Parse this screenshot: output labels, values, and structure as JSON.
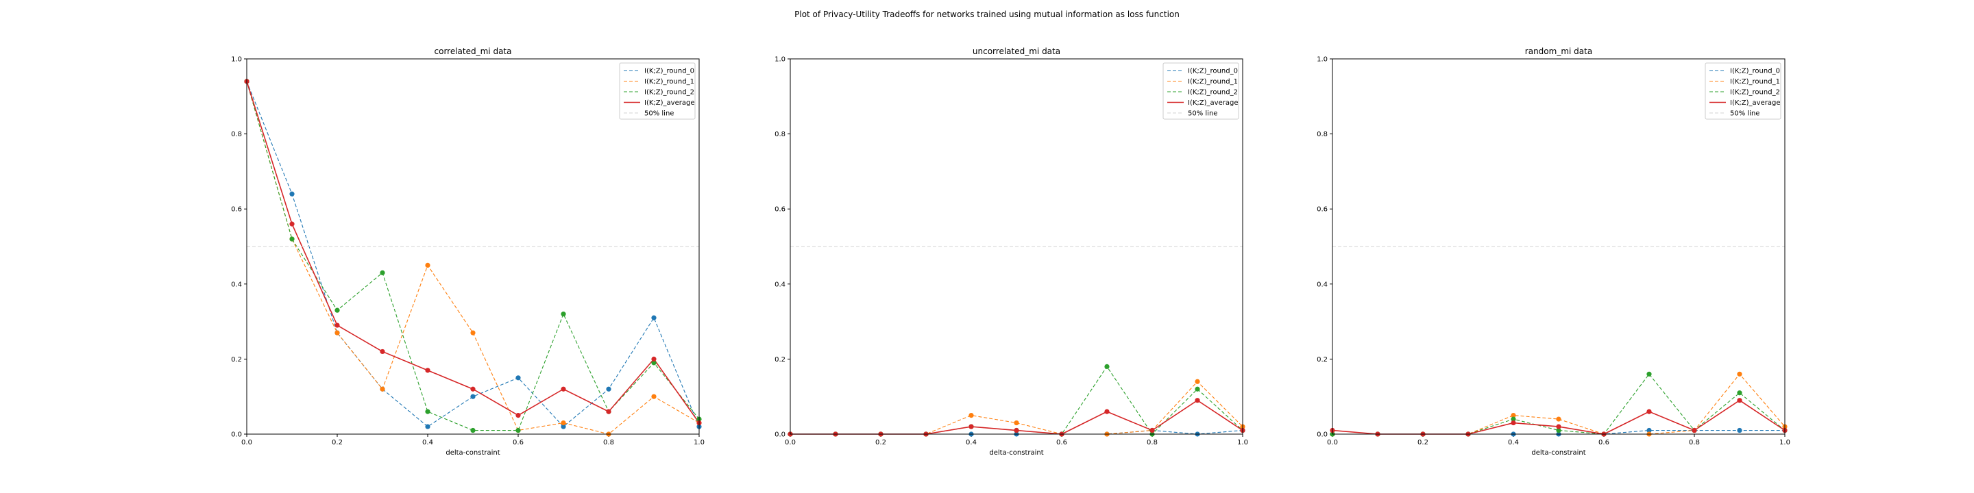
{
  "figure": {
    "title": "Plot of Privacy-Utility Tradeoffs for networks trained using mutual information as loss function"
  },
  "colors": {
    "round_0": "#1f77b4",
    "round_1": "#ff7f0e",
    "round_2": "#2ca02c",
    "average": "#d62728",
    "ref_line": "#d3d3d3"
  },
  "chart_data": [
    {
      "type": "line",
      "title": "correlated_mi data",
      "xlabel": "delta-constraint",
      "ylabel": "",
      "xlim": [
        0,
        1
      ],
      "ylim": [
        0,
        1
      ],
      "xticks": [
        "0.0",
        "0.2",
        "0.4",
        "0.6",
        "0.8",
        "1.0"
      ],
      "yticks": [
        "0.0",
        "0.2",
        "0.4",
        "0.6",
        "0.8",
        "1.0"
      ],
      "legend_position": "top-right",
      "x": [
        0.0,
        0.1,
        0.2,
        0.3,
        0.4,
        0.5,
        0.6,
        0.7,
        0.8,
        0.9,
        1.0
      ],
      "series": [
        {
          "name": "I(K;Z)_round_0",
          "style": "dashed",
          "color": "#1f77b4",
          "values": [
            0.94,
            0.64,
            0.27,
            0.12,
            0.02,
            0.1,
            0.15,
            0.02,
            0.12,
            0.31,
            0.02
          ]
        },
        {
          "name": "I(K;Z)_round_1",
          "style": "dashed",
          "color": "#ff7f0e",
          "values": [
            0.94,
            0.52,
            0.27,
            0.12,
            0.45,
            0.27,
            0.01,
            0.03,
            0.0,
            0.1,
            0.03
          ]
        },
        {
          "name": "I(K;Z)_round_2",
          "style": "dashed",
          "color": "#2ca02c",
          "values": [
            0.94,
            0.52,
            0.33,
            0.43,
            0.06,
            0.01,
            0.01,
            0.32,
            0.06,
            0.19,
            0.04
          ]
        },
        {
          "name": "I(K;Z)_average",
          "style": "solid",
          "color": "#d62728",
          "values": [
            0.94,
            0.56,
            0.29,
            0.22,
            0.17,
            0.12,
            0.05,
            0.12,
            0.06,
            0.2,
            0.03
          ]
        },
        {
          "name": "50% line",
          "style": "dashed",
          "color": "#d3d3d3",
          "values": [
            0.5,
            0.5
          ],
          "x": [
            0,
            1
          ],
          "markers": false
        }
      ]
    },
    {
      "type": "line",
      "title": "uncorrelated_mi data",
      "xlabel": "delta-constraint",
      "ylabel": "",
      "xlim": [
        0,
        1
      ],
      "ylim": [
        0,
        1
      ],
      "xticks": [
        "0.0",
        "0.2",
        "0.4",
        "0.6",
        "0.8",
        "1.0"
      ],
      "yticks": [
        "0.0",
        "0.2",
        "0.4",
        "0.6",
        "0.8",
        "1.0"
      ],
      "legend_position": "top-right",
      "x": [
        0.0,
        0.1,
        0.2,
        0.3,
        0.4,
        0.5,
        0.6,
        0.7,
        0.8,
        0.9,
        1.0
      ],
      "series": [
        {
          "name": "I(K;Z)_round_0",
          "style": "dashed",
          "color": "#1f77b4",
          "values": [
            0.0,
            0.0,
            0.0,
            0.0,
            0.0,
            0.0,
            0.0,
            0.0,
            0.01,
            0.0,
            0.01
          ]
        },
        {
          "name": "I(K;Z)_round_1",
          "style": "dashed",
          "color": "#ff7f0e",
          "values": [
            0.0,
            0.0,
            0.0,
            0.0,
            0.05,
            0.03,
            0.0,
            0.0,
            0.01,
            0.14,
            0.02
          ]
        },
        {
          "name": "I(K;Z)_round_2",
          "style": "dashed",
          "color": "#2ca02c",
          "values": [
            0.0,
            0.0,
            0.0,
            0.0,
            0.02,
            0.01,
            0.0,
            0.18,
            0.0,
            0.12,
            0.01
          ]
        },
        {
          "name": "I(K;Z)_average",
          "style": "solid",
          "color": "#d62728",
          "values": [
            0.0,
            0.0,
            0.0,
            0.0,
            0.02,
            0.01,
            0.0,
            0.06,
            0.01,
            0.09,
            0.01
          ]
        },
        {
          "name": "50% line",
          "style": "dashed",
          "color": "#d3d3d3",
          "values": [
            0.5,
            0.5
          ],
          "x": [
            0,
            1
          ],
          "markers": false
        }
      ]
    },
    {
      "type": "line",
      "title": "random_mi data",
      "xlabel": "delta-constraint",
      "ylabel": "",
      "xlim": [
        0,
        1
      ],
      "ylim": [
        0,
        1
      ],
      "xticks": [
        "0.0",
        "0.2",
        "0.4",
        "0.6",
        "0.8",
        "1.0"
      ],
      "yticks": [
        "0.0",
        "0.2",
        "0.4",
        "0.6",
        "0.8",
        "1.0"
      ],
      "legend_position": "top-right",
      "x": [
        0.0,
        0.1,
        0.2,
        0.3,
        0.4,
        0.5,
        0.6,
        0.7,
        0.8,
        0.9,
        1.0
      ],
      "series": [
        {
          "name": "I(K;Z)_round_0",
          "style": "dashed",
          "color": "#1f77b4",
          "values": [
            0.0,
            0.0,
            0.0,
            0.0,
            0.0,
            0.0,
            0.0,
            0.01,
            0.01,
            0.01,
            0.01
          ]
        },
        {
          "name": "I(K;Z)_round_1",
          "style": "dashed",
          "color": "#ff7f0e",
          "values": [
            0.0,
            0.0,
            0.0,
            0.0,
            0.05,
            0.04,
            0.0,
            0.0,
            0.01,
            0.16,
            0.02
          ]
        },
        {
          "name": "I(K;Z)_round_2",
          "style": "dashed",
          "color": "#2ca02c",
          "values": [
            0.0,
            0.0,
            0.0,
            0.0,
            0.04,
            0.01,
            0.0,
            0.16,
            0.01,
            0.11,
            0.01
          ]
        },
        {
          "name": "I(K;Z)_average",
          "style": "solid",
          "color": "#d62728",
          "values": [
            0.01,
            0.0,
            0.0,
            0.0,
            0.03,
            0.02,
            0.0,
            0.06,
            0.01,
            0.09,
            0.01
          ]
        },
        {
          "name": "50% line",
          "style": "dashed",
          "color": "#d3d3d3",
          "values": [
            0.5,
            0.5
          ],
          "x": [
            0,
            1
          ],
          "markers": false
        }
      ]
    }
  ]
}
